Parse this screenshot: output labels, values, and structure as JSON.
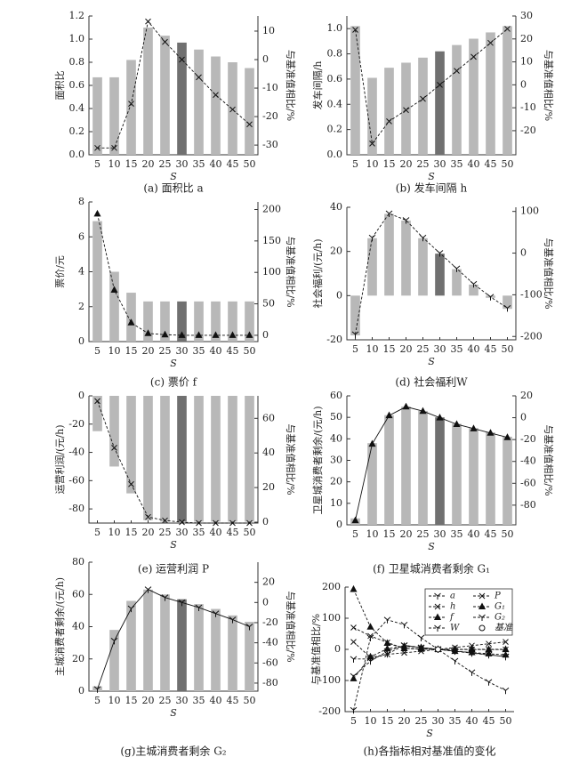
{
  "chart_data": [
    {
      "type": "combo",
      "title": "(a) 面积比 a",
      "ylabel": "面积比",
      "y2label": "与基准值相比/%",
      "xlabel": "S",
      "categories": [
        5,
        10,
        15,
        20,
        25,
        30,
        35,
        40,
        45,
        50
      ],
      "values": [
        0.67,
        0.67,
        0.82,
        1.1,
        1.03,
        0.97,
        0.91,
        0.85,
        0.8,
        0.75
      ],
      "bar_colors": [
        "#b8b8b8",
        "#b8b8b8",
        "#b8b8b8",
        "#b8b8b8",
        "#b8b8b8",
        "#707070",
        "#b8b8b8",
        "#b8b8b8",
        "#b8b8b8",
        "#b8b8b8"
      ],
      "ylim": [
        0,
        1.2
      ],
      "yticks": [
        {
          "value": 0,
          "label": "0.0"
        },
        {
          "value": 0.2,
          "label": "0.2"
        },
        {
          "value": 0.4,
          "label": "0.4"
        },
        {
          "value": 0.6,
          "label": "0.6"
        },
        {
          "value": 0.8,
          "label": "0.8"
        },
        {
          "value": 1,
          "label": "1.0"
        },
        {
          "value": 1.2,
          "label": "1.2"
        }
      ],
      "y2lim": [
        -33.4,
        15.3
      ],
      "y2ticks": [
        -30,
        -20,
        -10,
        0,
        10
      ],
      "line": {
        "values": [
          -31,
          -31,
          -15.5,
          13.4,
          6.2,
          0,
          -6.2,
          -12.4,
          -17.5,
          -22.7
        ],
        "axis": "y2",
        "marker": "x",
        "style": "dashed",
        "color": "#111"
      }
    },
    {
      "type": "combo",
      "title": "(b) 发车间隔 h",
      "ylabel": "发车间隔/h",
      "y2label": "与基准值相比/%",
      "xlabel": "S",
      "categories": [
        5,
        10,
        15,
        20,
        25,
        30,
        35,
        40,
        45,
        50
      ],
      "values": [
        1.02,
        0.61,
        0.69,
        0.73,
        0.77,
        0.82,
        0.87,
        0.92,
        0.97,
        1.02
      ],
      "bar_colors": [
        "#b8b8b8",
        "#b8b8b8",
        "#b8b8b8",
        "#b8b8b8",
        "#b8b8b8",
        "#707070",
        "#b8b8b8",
        "#b8b8b8",
        "#b8b8b8",
        "#b8b8b8"
      ],
      "ylim": [
        0,
        1.1
      ],
      "yticks": [
        {
          "value": 0,
          "label": "0.0"
        },
        {
          "value": 0.2,
          "label": "0.2"
        },
        {
          "value": 0.4,
          "label": "0.4"
        },
        {
          "value": 0.6,
          "label": "0.6"
        },
        {
          "value": 0.8,
          "label": "0.8"
        },
        {
          "value": 1,
          "label": "1.0"
        }
      ],
      "y2lim": [
        -30.5,
        30
      ],
      "y2ticks": [
        -20,
        -10,
        0,
        10,
        20,
        30
      ],
      "line": {
        "values": [
          24,
          -25.6,
          -15.9,
          -11,
          -6.1,
          0,
          6.1,
          12.2,
          18.3,
          24.4
        ],
        "axis": "y2",
        "marker": "x",
        "style": "dashed",
        "color": "#111"
      }
    },
    {
      "type": "combo",
      "title": "(c)  票价 f",
      "ylabel": "票价/元",
      "y2label": "与基准值相比/%",
      "xlabel": "S",
      "categories": [
        5,
        10,
        15,
        20,
        25,
        30,
        35,
        40,
        45,
        50
      ],
      "values": [
        6.9,
        4,
        2.8,
        2.3,
        2.3,
        2.3,
        2.3,
        2.3,
        2.3,
        2.3
      ],
      "bar_colors": [
        "#b8b8b8",
        "#b8b8b8",
        "#b8b8b8",
        "#b8b8b8",
        "#b8b8b8",
        "#707070",
        "#b8b8b8",
        "#b8b8b8",
        "#b8b8b8",
        "#b8b8b8"
      ],
      "ylim": [
        0,
        8
      ],
      "yticks": [
        0,
        2,
        4,
        6,
        8
      ],
      "y2lim": [
        -10,
        212
      ],
      "y2ticks": [
        0,
        50,
        100,
        150,
        200
      ],
      "line": {
        "values": [
          193,
          72,
          20,
          3,
          1,
          0,
          0,
          0,
          0,
          0
        ],
        "axis": "y2",
        "marker": "tri",
        "style": "dashed",
        "color": "#111"
      }
    },
    {
      "type": "combo",
      "title": "(d)  社会福利W",
      "ylabel": "社会福利/(元/h)",
      "y2label": "与基准值相比/%",
      "xlabel": "S",
      "categories": [
        5,
        10,
        15,
        20,
        25,
        30,
        35,
        40,
        45,
        50
      ],
      "values": [
        -18,
        26,
        37,
        34,
        26,
        19,
        12,
        5,
        -1,
        -6
      ],
      "bar_colors": [
        "#b8b8b8",
        "#b8b8b8",
        "#b8b8b8",
        "#b8b8b8",
        "#b8b8b8",
        "#707070",
        "#b8b8b8",
        "#b8b8b8",
        "#b8b8b8",
        "#b8b8b8"
      ],
      "ylim": [
        -20,
        40
      ],
      "yticks": [
        -20,
        0,
        20,
        40
      ],
      "y2lim": [
        -208,
        110
      ],
      "y2ticks": [
        -200,
        -100,
        0,
        100
      ],
      "line": {
        "values": [
          -195,
          37,
          95,
          79,
          37,
          0,
          -37,
          -74,
          -105,
          -132
        ],
        "axis": "y2",
        "marker": "tri_down",
        "style": "dashed",
        "color": "#111"
      }
    },
    {
      "type": "combo",
      "title": "(e)  运营利润 P",
      "ylabel": "运营利润/(元/h)",
      "y2label": "与基准值相比/%",
      "xlabel": "S",
      "categories": [
        5,
        10,
        15,
        20,
        25,
        30,
        35,
        40,
        45,
        50
      ],
      "values": [
        -25,
        -50,
        -69,
        -88,
        -89,
        -89,
        -89,
        -89,
        -89,
        -89
      ],
      "bar_colors": [
        "#b8b8b8",
        "#b8b8b8",
        "#b8b8b8",
        "#b8b8b8",
        "#b8b8b8",
        "#707070",
        "#b8b8b8",
        "#b8b8b8",
        "#b8b8b8",
        "#b8b8b8"
      ],
      "ylim": [
        -90,
        0
      ],
      "yticks": [
        -80,
        -60,
        -40,
        -20,
        0
      ],
      "y2lim": [
        -0.5,
        73
      ],
      "y2ticks": [
        0,
        20,
        40,
        60
      ],
      "line": {
        "values": [
          70,
          43,
          22,
          3,
          1,
          0,
          -0.5,
          -0.5,
          -0.5,
          -0.5
        ],
        "axis": "y2",
        "marker": "x",
        "style": "dashed",
        "color": "#111"
      }
    },
    {
      "type": "combo",
      "title": "(f)  卫星城消费者剩余 G₁",
      "ylabel": "卫星城消费者剩余/(元/h)",
      "y2label": "与基准值相比/%",
      "xlabel": "S",
      "categories": [
        5,
        10,
        15,
        20,
        25,
        30,
        35,
        40,
        45,
        50
      ],
      "values": [
        3,
        38,
        51,
        55,
        53,
        50,
        47,
        45,
        43,
        41
      ],
      "bar_colors": [
        "#b8b8b8",
        "#b8b8b8",
        "#b8b8b8",
        "#b8b8b8",
        "#b8b8b8",
        "#707070",
        "#b8b8b8",
        "#b8b8b8",
        "#b8b8b8",
        "#b8b8b8"
      ],
      "ylim": [
        0,
        60
      ],
      "yticks": [
        0,
        10,
        20,
        30,
        40,
        50,
        60
      ],
      "y2lim": [
        -98,
        20
      ],
      "y2ticks": [
        -80,
        -60,
        -40,
        -20,
        0,
        20
      ],
      "line": {
        "values": [
          -94,
          -24,
          2,
          10,
          6,
          0,
          -6,
          -10,
          -14,
          -18
        ],
        "axis": "y2",
        "marker": "tri",
        "style": "solid",
        "color": "#111"
      }
    },
    {
      "type": "combo",
      "title": "(g)主城消费者剩余 G₂",
      "ylabel": "主城消费者剩余/(元/h)",
      "y2label": "与基准值相比/%",
      "xlabel": "S",
      "categories": [
        5,
        10,
        15,
        20,
        25,
        30,
        35,
        40,
        45,
        50
      ],
      "values": [
        3,
        38,
        56,
        63,
        60,
        57,
        54,
        51,
        47,
        43
      ],
      "bar_colors": [
        "#b8b8b8",
        "#b8b8b8",
        "#b8b8b8",
        "#b8b8b8",
        "#b8b8b8",
        "#707070",
        "#b8b8b8",
        "#b8b8b8",
        "#b8b8b8",
        "#b8b8b8"
      ],
      "ylim": [
        0,
        80
      ],
      "yticks": [
        0,
        20,
        40,
        60,
        80
      ],
      "y2lim": [
        -88,
        40
      ],
      "y2ticks": [
        -80,
        -60,
        -40,
        -20,
        0,
        20
      ],
      "line": {
        "values": [
          -86,
          -38,
          -6,
          13,
          5,
          0,
          -5,
          -11,
          -17,
          -24
        ],
        "axis": "y2",
        "marker": "tri_down",
        "style": "solid",
        "color": "#111"
      }
    },
    {
      "type": "line",
      "title": "(h)各指标相对基准值的变化",
      "ylabel": "与基准值相比/%",
      "xlabel": "S",
      "categories": [
        5,
        10,
        15,
        20,
        25,
        30,
        35,
        40,
        45,
        50
      ],
      "ylim": [
        -200,
        200
      ],
      "yticks": [
        -200,
        -100,
        0,
        100,
        200
      ],
      "series": [
        {
          "name": "a",
          "color": "#111",
          "marker": "tri_down",
          "values": [
            -31,
            -31,
            -15,
            13,
            6,
            0,
            -6,
            -12,
            -18,
            -23
          ]
        },
        {
          "name": "h",
          "color": "#111",
          "marker": "x",
          "values": [
            24,
            -26,
            -16,
            -11,
            -6,
            0,
            6,
            12,
            18,
            24
          ]
        },
        {
          "name": "f",
          "color": "#111",
          "marker": "tri",
          "values": [
            193,
            72,
            20,
            3,
            1,
            0,
            0,
            0,
            0,
            0
          ]
        },
        {
          "name": "W",
          "color": "#111",
          "marker": "tri_down",
          "values": [
            -195,
            37,
            95,
            79,
            37,
            0,
            -37,
            -74,
            -105,
            -132
          ]
        },
        {
          "name": "P",
          "color": "#111",
          "marker": "x",
          "values": [
            70,
            43,
            22,
            3,
            1,
            0,
            -0.5,
            -0.5,
            -0.5,
            -0.5
          ]
        },
        {
          "name": "G₁",
          "color": "#111",
          "marker": "tri",
          "values": [
            -94,
            -24,
            2,
            10,
            6,
            0,
            -6,
            -10,
            -14,
            -18
          ]
        },
        {
          "name": "G₂",
          "color": "#111",
          "marker": "tri_down",
          "values": [
            -86,
            -38,
            -6,
            13,
            5,
            0,
            -5,
            -11,
            -17,
            -24
          ]
        }
      ],
      "baseline": {
        "name": "基准",
        "x": 30,
        "value": 0
      }
    }
  ]
}
